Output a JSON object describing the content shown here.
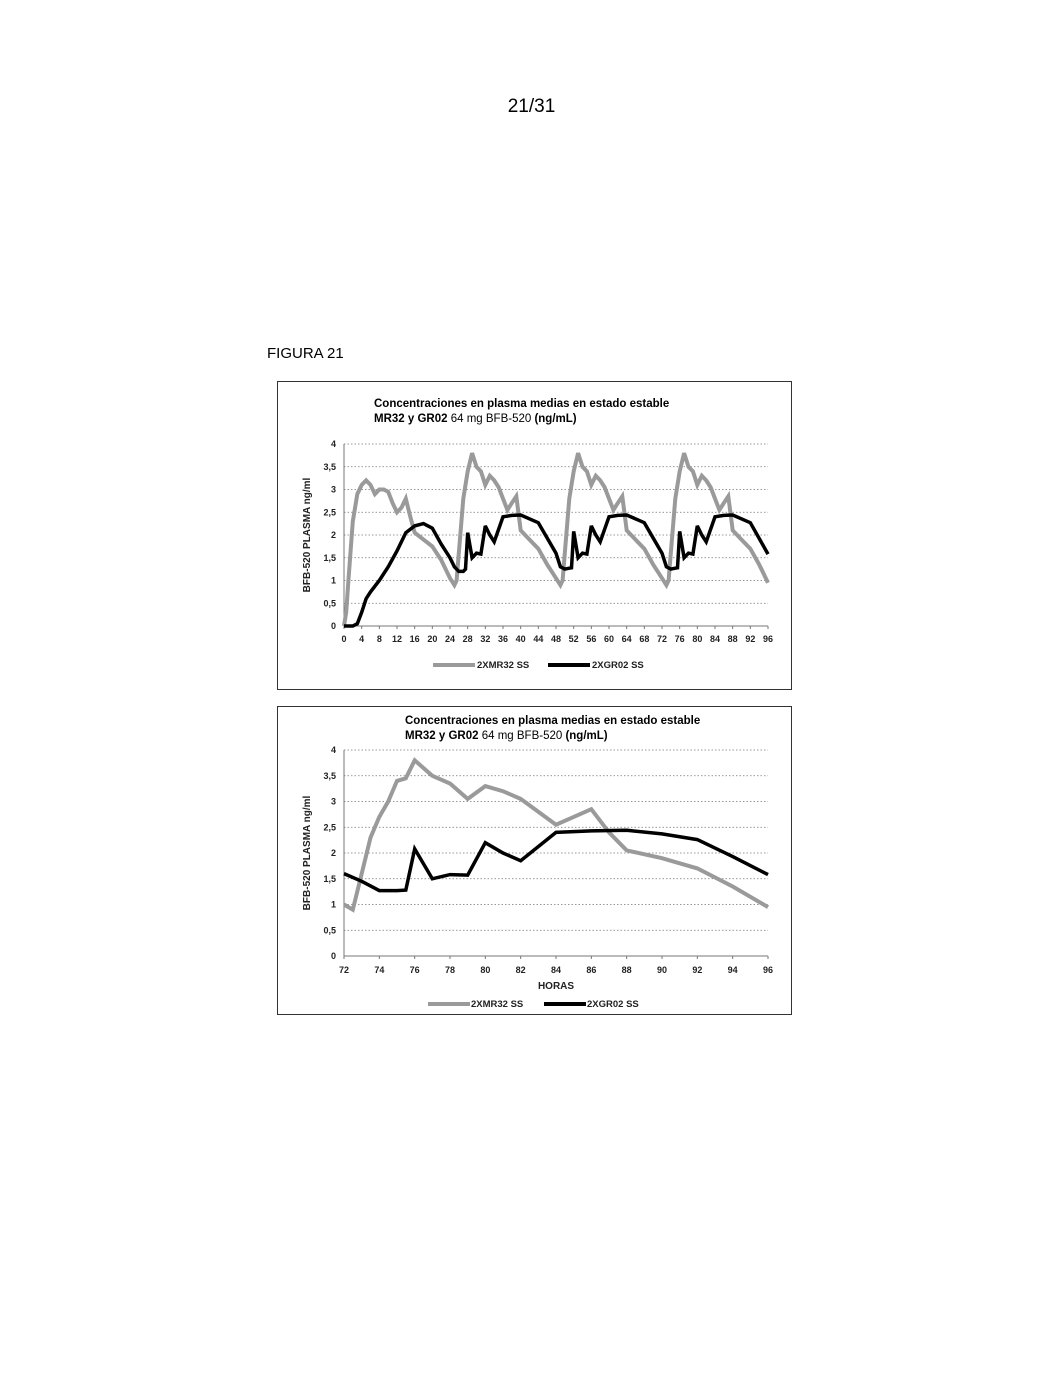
{
  "page": {
    "number": "21/31",
    "figure_label": "FIGURA 21"
  },
  "chart_data": [
    {
      "type": "line",
      "title_line1": "Concentraciones en plasma medias en estado estable",
      "title_line2_bold_a": "MR32 y GR02",
      "title_line2_normal": " 64 mg  BFB-520 ",
      "title_line2_bold_b": "(ng/mL)",
      "xlabel": "",
      "ylabel": "BFB-520 PLASMA ng/ml",
      "xlim": [
        0,
        96
      ],
      "ylim": [
        0,
        4
      ],
      "xticks": [
        "0",
        "4",
        "8",
        "12",
        "16",
        "20",
        "24",
        "28",
        "32",
        "36",
        "40",
        "44",
        "48",
        "52",
        "56",
        "60",
        "64",
        "68",
        "72",
        "76",
        "80",
        "84",
        "88",
        "92",
        "96"
      ],
      "yticks": [
        "0",
        "0,5",
        "1",
        "1,5",
        "2",
        "2,5",
        "3",
        "3,5",
        "4"
      ],
      "grid": "horizontal dotted",
      "legend_position": "bottom",
      "series": [
        {
          "name": "2XMR32  SS",
          "color": "#9a9a9a",
          "x": [
            0,
            0.5,
            1,
            2,
            3,
            4,
            5,
            6,
            7,
            8,
            9,
            10,
            11,
            12,
            13,
            14,
            15,
            16,
            18,
            20,
            22,
            24,
            25,
            25.5,
            26,
            27,
            28,
            29,
            30,
            31,
            32,
            33,
            34,
            35,
            36,
            37,
            38,
            39,
            40,
            42,
            44,
            46,
            48,
            49,
            49.5,
            50,
            51,
            52,
            53,
            54,
            55,
            56,
            57,
            58,
            59,
            60,
            61,
            62,
            63,
            64,
            66,
            68,
            70,
            72,
            73,
            73.5,
            74,
            75,
            76,
            77,
            78,
            79,
            80,
            81,
            82,
            83,
            84,
            85,
            86,
            87,
            88,
            90,
            92,
            94,
            96
          ],
          "y": [
            0,
            0.3,
            1.0,
            2.3,
            2.9,
            3.1,
            3.2,
            3.1,
            2.9,
            3.0,
            3.0,
            2.95,
            2.7,
            2.5,
            2.6,
            2.8,
            2.4,
            2.05,
            1.9,
            1.75,
            1.45,
            1.05,
            0.9,
            1.0,
            1.6,
            2.8,
            3.4,
            3.8,
            3.5,
            3.4,
            3.1,
            3.3,
            3.2,
            3.05,
            2.8,
            2.55,
            2.7,
            2.85,
            2.1,
            1.9,
            1.7,
            1.35,
            1.05,
            0.9,
            1.0,
            1.6,
            2.8,
            3.4,
            3.8,
            3.5,
            3.4,
            3.1,
            3.3,
            3.2,
            3.05,
            2.8,
            2.55,
            2.7,
            2.85,
            2.1,
            1.9,
            1.7,
            1.35,
            1.05,
            0.9,
            1.0,
            1.6,
            2.8,
            3.4,
            3.8,
            3.5,
            3.4,
            3.1,
            3.3,
            3.2,
            3.05,
            2.8,
            2.55,
            2.7,
            2.85,
            2.1,
            1.9,
            1.7,
            1.35,
            0.95
          ]
        },
        {
          "name": "2XGR02  SS",
          "color": "#000000",
          "x": [
            0,
            1,
            2,
            3,
            4,
            5,
            6,
            8,
            10,
            12,
            14,
            16,
            18,
            20,
            22,
            24,
            25,
            26,
            27,
            27.5,
            28,
            29,
            30,
            31,
            32,
            33,
            34,
            36,
            38,
            40,
            44,
            48,
            49,
            50,
            51,
            51.5,
            52,
            53,
            54,
            55,
            56,
            57,
            58,
            60,
            62,
            64,
            68,
            72,
            73,
            74,
            75,
            75.5,
            76,
            77,
            78,
            79,
            80,
            81,
            82,
            84,
            86,
            88,
            92,
            96
          ],
          "y": [
            0,
            0,
            0,
            0.05,
            0.3,
            0.6,
            0.75,
            1.0,
            1.3,
            1.65,
            2.05,
            2.2,
            2.25,
            2.15,
            1.8,
            1.5,
            1.3,
            1.2,
            1.2,
            1.25,
            2.05,
            1.5,
            1.6,
            1.58,
            2.2,
            2.0,
            1.85,
            2.4,
            2.43,
            2.44,
            2.27,
            1.6,
            1.3,
            1.25,
            1.27,
            1.28,
            2.08,
            1.5,
            1.6,
            1.58,
            2.2,
            2.0,
            1.85,
            2.4,
            2.43,
            2.44,
            2.27,
            1.6,
            1.3,
            1.25,
            1.27,
            1.28,
            2.08,
            1.5,
            1.6,
            1.58,
            2.2,
            2.0,
            1.85,
            2.4,
            2.43,
            2.44,
            2.27,
            1.58
          ]
        }
      ]
    },
    {
      "type": "line",
      "title_line1": "Concentraciones en plasma medias en estado estable",
      "title_line2_bold_a": "MR32 y GR02",
      "title_line2_normal": " 64 mg  BFB-520 ",
      "title_line2_bold_b": "(ng/mL)",
      "xlabel": "HORAS",
      "ylabel": "BFB-520 PLASMA ng/ml",
      "xlim": [
        72,
        96
      ],
      "ylim": [
        0,
        4
      ],
      "xticks": [
        "72",
        "74",
        "76",
        "78",
        "80",
        "82",
        "84",
        "86",
        "88",
        "90",
        "92",
        "94",
        "96"
      ],
      "yticks": [
        "0",
        "0,5",
        "1",
        "1,5",
        "2",
        "2,5",
        "3",
        "3,5",
        "4"
      ],
      "grid": "horizontal dotted",
      "legend_position": "bottom",
      "series": [
        {
          "name": "2XMR32  SS",
          "color": "#9a9a9a",
          "x": [
            72,
            72.5,
            73,
            73.5,
            74,
            74.5,
            75,
            75.5,
            76,
            77,
            78,
            79,
            80,
            81,
            82,
            83,
            84,
            85,
            86,
            87,
            88,
            90,
            92,
            94,
            96
          ],
          "y": [
            1.0,
            0.9,
            1.6,
            2.3,
            2.7,
            3.0,
            3.4,
            3.45,
            3.8,
            3.5,
            3.35,
            3.05,
            3.3,
            3.2,
            3.05,
            2.8,
            2.55,
            2.7,
            2.85,
            2.4,
            2.05,
            1.9,
            1.7,
            1.35,
            0.95
          ]
        },
        {
          "name": "2XGR02  SS",
          "color": "#000000",
          "x": [
            72,
            73,
            74,
            75,
            75.5,
            76,
            77,
            78,
            79,
            80,
            81,
            82,
            84,
            86,
            88,
            90,
            92,
            94,
            96
          ],
          "y": [
            1.6,
            1.45,
            1.27,
            1.27,
            1.28,
            2.08,
            1.5,
            1.58,
            1.57,
            2.2,
            2.0,
            1.85,
            2.4,
            2.43,
            2.44,
            2.37,
            2.26,
            1.93,
            1.58
          ]
        }
      ]
    }
  ]
}
